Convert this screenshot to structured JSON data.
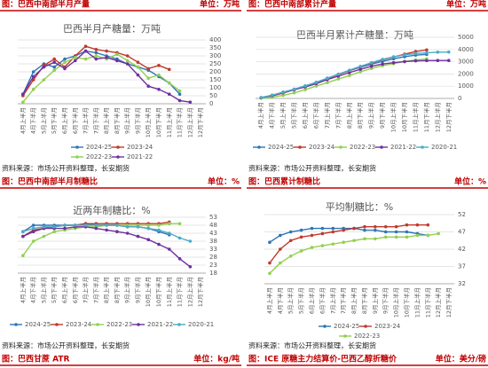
{
  "captions": [
    {
      "title": "图：巴西中南部半月产量",
      "unit": "单位：万吨"
    },
    {
      "title": "图：巴西中南部累计产量",
      "unit": "单位：万吨"
    },
    {
      "title": "图：巴西中南部半月制糖比",
      "unit": "单位：%"
    },
    {
      "title": "图：巴西累计制糖比",
      "unit": "单位：%"
    },
    {
      "title": "图：巴西甘蔗 ATR",
      "unit": "单位：kg/吨"
    },
    {
      "title": "图：ICE 原糖主力结算价-巴西乙醇折糖价",
      "unit": "单位：美分/磅"
    }
  ],
  "sources": [
    "资料来源：市场公开资料整理，长安期货",
    "资料来源：市场公开资料整理，长安期货",
    "资料来源：市场公开资料整理，长安期货",
    "资料来源：市场公开资料整理，长安期货"
  ],
  "chart_data": [
    {
      "type": "line",
      "title": "巴西半月产糖量：万吨",
      "categories": [
        "4月上半月",
        "4月下半月",
        "5月上半月",
        "5月下半月",
        "6月上半月",
        "6月下半月",
        "7月上半月",
        "7月下半月",
        "8月上半月",
        "8月下半月",
        "9月上半月",
        "9月下半月",
        "10月上半月",
        "10月下半月",
        "11月上半月",
        "11月下半月",
        "12月上半月",
        "12月下半月"
      ],
      "ylim": [
        0,
        400
      ],
      "yticks": [
        0,
        50,
        100,
        150,
        200,
        250,
        300,
        350,
        400
      ],
      "grid": true,
      "series": [
        {
          "name": "2024-25",
          "color": "#2e75b6",
          "values": [
            60,
            200,
            250,
            230,
            280,
            300,
            330,
            320,
            300,
            280,
            250,
            230,
            210,
            170,
            130,
            60,
            null,
            null
          ]
        },
        {
          "name": "2023-24",
          "color": "#c0392b",
          "values": [
            50,
            150,
            240,
            280,
            230,
            300,
            360,
            340,
            330,
            320,
            300,
            260,
            220,
            240,
            215,
            null,
            null,
            null
          ]
        },
        {
          "name": "2022-23",
          "color": "#92d050",
          "values": [
            10,
            90,
            150,
            210,
            260,
            290,
            280,
            300,
            280,
            310,
            270,
            230,
            160,
            180,
            130,
            80,
            null,
            null
          ]
        },
        {
          "name": "2021-22",
          "color": "#7030a0",
          "values": [
            60,
            170,
            230,
            260,
            220,
            270,
            330,
            280,
            290,
            270,
            250,
            180,
            110,
            90,
            60,
            20,
            10,
            null
          ]
        }
      ]
    },
    {
      "type": "line",
      "title": "巴西半月累计产糖量：万吨",
      "categories": [
        "4月上半月",
        "4月下半月",
        "5月上半月",
        "5月下半月",
        "6月上半月",
        "6月下半月",
        "7月上半月",
        "7月下半月",
        "8月上半月",
        "8月下半月",
        "9月上半月",
        "9月下半月",
        "10月上半月",
        "10月下半月",
        "11月上半月",
        "11月下半月",
        "12月上半月",
        "12月下半月"
      ],
      "ylim": [
        0,
        5000
      ],
      "yticks": [
        0,
        1000,
        2000,
        3000,
        4000,
        5000
      ],
      "grid": true,
      "series": [
        {
          "name": "2024-25",
          "color": "#2e75b6",
          "values": [
            60,
            260,
            510,
            740,
            1020,
            1320,
            1650,
            1970,
            2270,
            2550,
            2800,
            3030,
            3240,
            3410,
            3540,
            3600,
            null,
            null
          ]
        },
        {
          "name": "2023-24",
          "color": "#c0392b",
          "values": [
            50,
            200,
            440,
            720,
            950,
            1250,
            1610,
            1950,
            2280,
            2600,
            2900,
            3160,
            3380,
            3620,
            3835,
            3960,
            null,
            null
          ]
        },
        {
          "name": "2022-23",
          "color": "#92d050",
          "values": [
            10,
            100,
            250,
            460,
            720,
            1010,
            1290,
            1590,
            1870,
            2180,
            2450,
            2680,
            2840,
            3020,
            3150,
            3230,
            null,
            null
          ]
        },
        {
          "name": "2021-22",
          "color": "#7030a0",
          "values": [
            60,
            230,
            460,
            720,
            940,
            1210,
            1540,
            1820,
            2110,
            2380,
            2630,
            2810,
            2920,
            3010,
            3070,
            3090,
            3100,
            3100
          ]
        },
        {
          "name": "2020-21",
          "color": "#4bacc6",
          "values": [
            80,
            270,
            500,
            760,
            1030,
            1310,
            1650,
            1980,
            2310,
            2620,
            2920,
            3190,
            3400,
            3560,
            3670,
            3730,
            3780,
            3790
          ]
        }
      ]
    },
    {
      "type": "line",
      "title": "近两年制糖比：%",
      "categories": [
        "4月上半月",
        "4月下半月",
        "5月上半月",
        "5月下半月",
        "6月上半月",
        "6月下半月",
        "7月上半月",
        "7月下半月",
        "8月上半月",
        "8月下半月",
        "9月上半月",
        "9月下半月",
        "10月上半月",
        "10月下半月",
        "11月上半月",
        "11月下半月",
        "12月上半月",
        "12月下半月"
      ],
      "ylim": [
        18,
        53
      ],
      "yticks": [
        18,
        23,
        28,
        33,
        38,
        43,
        48,
        53
      ],
      "grid": true,
      "series": [
        {
          "name": "2024-25",
          "color": "#2e75b6",
          "values": [
            44,
            48,
            48,
            48,
            48,
            48,
            49,
            48,
            48,
            48,
            47,
            47,
            46,
            44,
            42,
            null,
            null,
            null
          ]
        },
        {
          "name": "2023-24",
          "color": "#c0392b",
          "values": [
            41,
            45,
            46,
            47,
            48,
            48,
            49,
            49,
            49,
            49,
            49,
            49,
            49,
            49,
            50,
            null,
            null,
            null
          ]
        },
        {
          "name": "2022-23",
          "color": "#92d050",
          "values": [
            29,
            38,
            41,
            44,
            45,
            46,
            47,
            47,
            48,
            48,
            48,
            48,
            48,
            48,
            49,
            49,
            null,
            null
          ]
        },
        {
          "name": "2021-22",
          "color": "#7030a0",
          "values": [
            41,
            44,
            46,
            46,
            46,
            47,
            47,
            46,
            45,
            44,
            43,
            41,
            39,
            36,
            33,
            27,
            22,
            null
          ]
        },
        {
          "name": "2020-21",
          "color": "#4bacc6",
          "values": [
            44,
            46,
            47,
            47,
            48,
            48,
            48,
            48,
            48,
            48,
            47,
            47,
            46,
            45,
            43,
            40,
            38,
            null
          ]
        }
      ]
    },
    {
      "type": "line",
      "title": "平均制糖比：%",
      "categories": [
        "4月上半月",
        "4月下半月",
        "5月上半月",
        "5月下半月",
        "6月上半月",
        "6月下半月",
        "7月上半月",
        "7月下半月",
        "8月上半月",
        "8月下半月",
        "9月上半月",
        "9月下半月",
        "10月上半月",
        "10月下半月",
        "11月上半月",
        "11月下半月",
        "12月上半月",
        "12月下半月"
      ],
      "ylim": [
        32,
        52
      ],
      "yticks": [
        32,
        37,
        42,
        47,
        52
      ],
      "grid": true,
      "series": [
        {
          "name": "2024-25",
          "color": "#2e75b6",
          "values": [
            44,
            46,
            47,
            47.5,
            48,
            48,
            48,
            48,
            48,
            47.5,
            47.5,
            47,
            47,
            47,
            46.5,
            46,
            null,
            null
          ]
        },
        {
          "name": "2023-24",
          "color": "#c0392b",
          "values": [
            38,
            42,
            44.5,
            45.5,
            46,
            46.5,
            47,
            47.5,
            48,
            48.5,
            48.5,
            48.5,
            48.5,
            49,
            49,
            49,
            null,
            null
          ]
        },
        {
          "name": "2022-23",
          "color": "#92d050",
          "values": [
            35,
            38,
            40,
            41.5,
            42.5,
            43,
            43.5,
            44,
            44.5,
            45,
            45,
            45.5,
            45.5,
            45.5,
            46,
            46,
            46.5,
            null
          ]
        }
      ]
    }
  ]
}
